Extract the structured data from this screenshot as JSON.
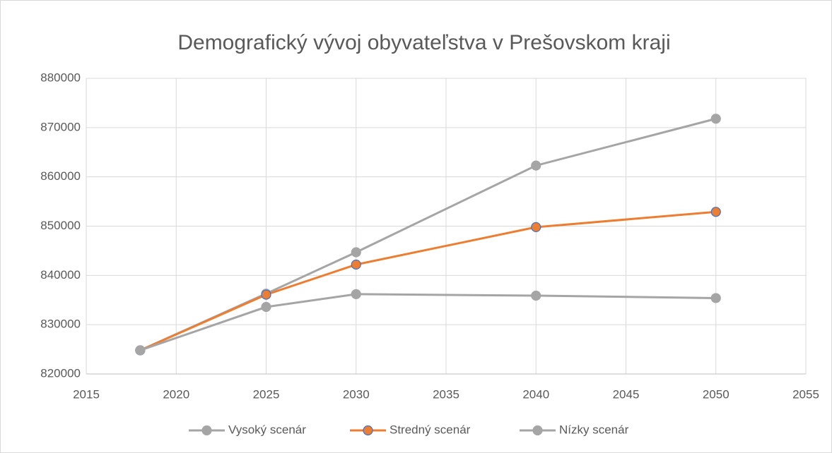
{
  "chart_data": {
    "type": "line",
    "title": "Demografický vývoj obyvateľstva v Prešovskom kraji",
    "x": [
      2018,
      2025,
      2030,
      2040,
      2050
    ],
    "series": [
      {
        "name": "Vysoký scenár",
        "color": "#a5a5a5",
        "marker_edge_color": "#a5a5a5",
        "values": [
          824800,
          836300,
          844700,
          862300,
          871800
        ]
      },
      {
        "name": "Stredný scenár",
        "color": "#ed7d31",
        "marker_edge_color": "#4472c4",
        "values": [
          824800,
          836100,
          842200,
          849800,
          852900
        ]
      },
      {
        "name": "Nízky scenár",
        "color": "#a5a5a5",
        "marker_edge_color": "#a5a5a5",
        "values": [
          824800,
          833600,
          836200,
          835900,
          835400
        ]
      }
    ],
    "xlim": [
      2015,
      2055
    ],
    "xticks": [
      2015,
      2020,
      2025,
      2030,
      2035,
      2040,
      2045,
      2050,
      2055
    ],
    "ylim": [
      820000,
      880000
    ],
    "yticks": [
      820000,
      830000,
      840000,
      850000,
      860000,
      870000,
      880000
    ],
    "grid": true,
    "legend": "bottom"
  }
}
